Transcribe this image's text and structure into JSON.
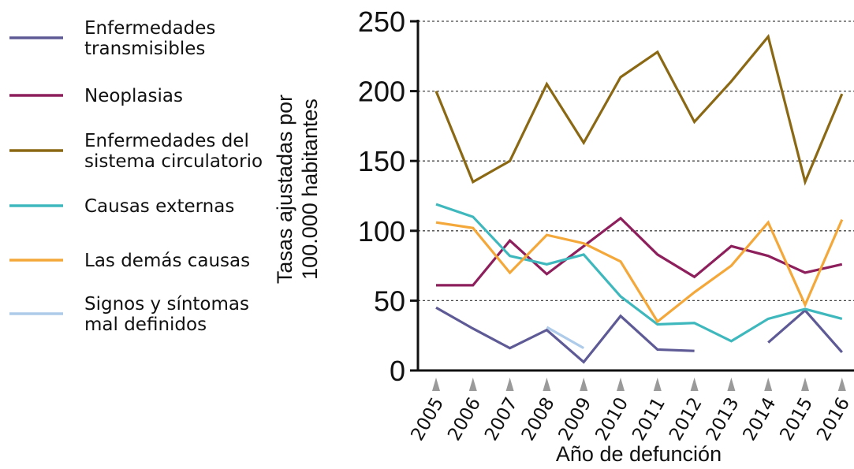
{
  "chart_data": {
    "type": "line",
    "title": "",
    "xlabel": "Año de defunción",
    "ylabel": [
      "Tasas ajustadas por",
      "100.000 habitantes"
    ],
    "ylim": [
      0,
      250
    ],
    "yticks": [
      0,
      50,
      100,
      150,
      200,
      250
    ],
    "grid": "horizontal dotted",
    "legend_position": "left",
    "x": [
      "2005",
      "2006",
      "2007",
      "2008",
      "2009",
      "2010",
      "2011",
      "2012",
      "2013",
      "2014",
      "2015",
      "2016"
    ],
    "series": [
      {
        "name": "Enfermedades transmisibles",
        "label_lines": [
          "Enfermedades",
          "transmisibles"
        ],
        "color": "#5e5a96",
        "values": [
          45,
          30,
          16,
          29,
          6,
          39,
          15,
          14,
          null,
          20,
          43,
          13
        ]
      },
      {
        "name": "Neoplasias",
        "label_lines": [
          "Neoplasias"
        ],
        "color": "#8d1f5c",
        "values": [
          61,
          61,
          93,
          69,
          89,
          109,
          83,
          67,
          89,
          82,
          70,
          76
        ]
      },
      {
        "name": "Enfermedades del sistema circulatorio",
        "label_lines": [
          "Enfermedades del",
          "sistema circulatorio"
        ],
        "color": "#8b6914",
        "values": [
          200,
          135,
          150,
          205,
          163,
          210,
          228,
          178,
          207,
          239,
          135,
          198
        ]
      },
      {
        "name": "Causas externas",
        "label_lines": [
          "Causas externas"
        ],
        "color": "#3fb8bd",
        "values": [
          119,
          110,
          82,
          76,
          83,
          53,
          33,
          34,
          21,
          37,
          44,
          37
        ]
      },
      {
        "name": "Las demás causas",
        "label_lines": [
          "Las demás causas"
        ],
        "color": "#f4a83a",
        "values": [
          106,
          102,
          70,
          97,
          91,
          78,
          35,
          56,
          75,
          106,
          47,
          108
        ]
      },
      {
        "name": "Signos y síntomas mal definidos",
        "label_lines": [
          "Signos y síntomas",
          "mal definidos"
        ],
        "color": "#aecbea",
        "values": [
          null,
          null,
          null,
          31,
          16,
          null,
          null,
          null,
          null,
          null,
          null,
          null
        ]
      }
    ]
  }
}
